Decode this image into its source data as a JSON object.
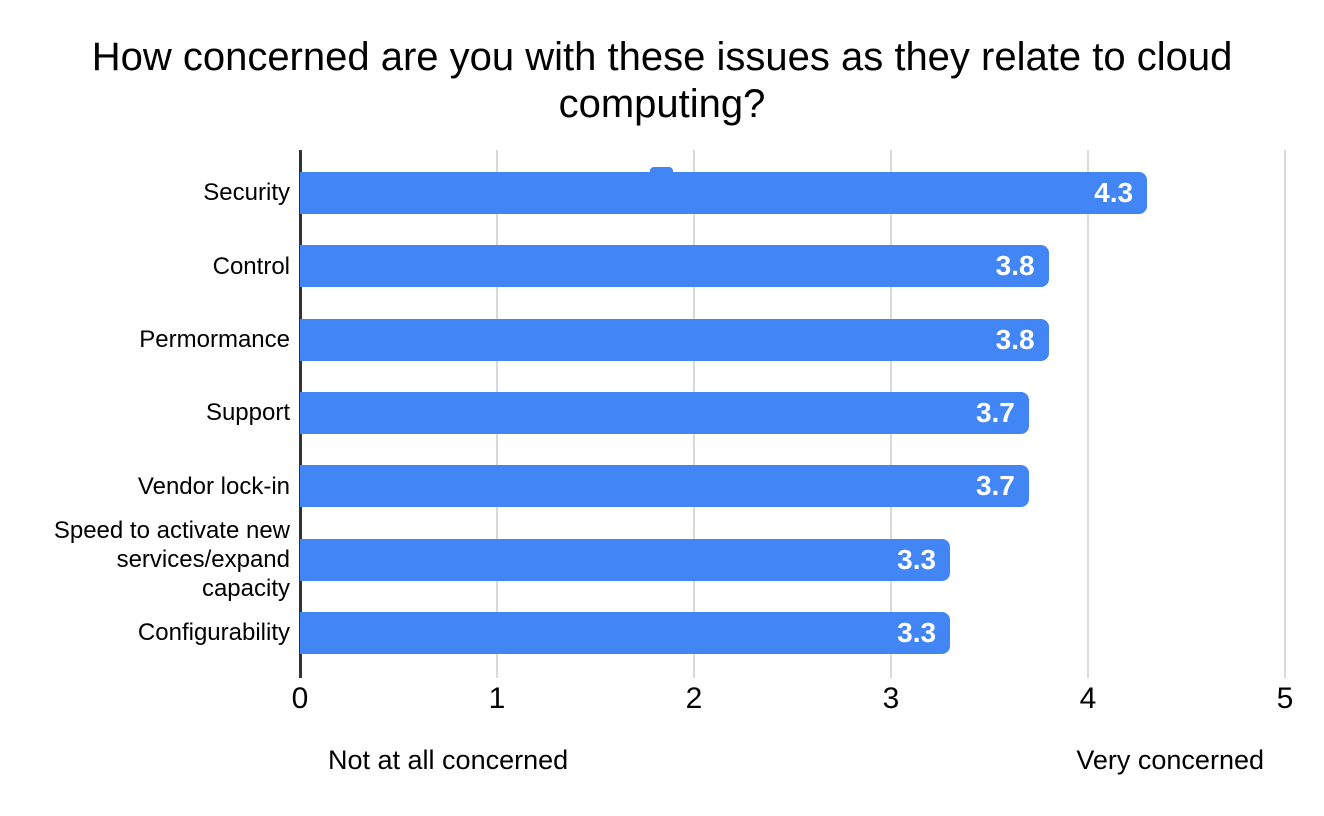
{
  "page": {
    "background": "#ffffff"
  },
  "chart_data": {
    "type": "bar",
    "orientation": "horizontal",
    "title": "How concerned are you with these issues as they relate to cloud computing?",
    "categories": [
      "Security",
      "Control",
      "Permormance",
      "Support",
      "Vendor lock-in",
      "Speed to activate new\nservices/expand\ncapacity",
      "Configurability"
    ],
    "values": [
      4.3,
      3.8,
      3.8,
      3.7,
      3.7,
      3.3,
      3.3
    ],
    "value_labels": [
      "4.3",
      "3.8",
      "3.8",
      "3.7",
      "3.7",
      "3.3",
      "3.3"
    ],
    "xlim": [
      0,
      5
    ],
    "xticks": [
      "0",
      "1",
      "2",
      "3",
      "4",
      "5"
    ],
    "axis_min_label": "Not at all concerned",
    "axis_max_label": "Very concerned",
    "grid": true,
    "legend": "none",
    "colors": {
      "bar": "#4285f4",
      "value_text": "#ffffff",
      "gridline": "#d9d9d9",
      "axis_line": "#333333",
      "text": "#000000"
    }
  }
}
